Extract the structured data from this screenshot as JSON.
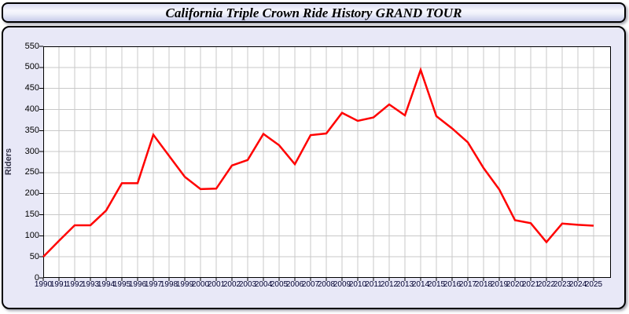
{
  "header": {
    "title": "California Triple Crown Ride History GRAND TOUR"
  },
  "chart_data": {
    "type": "line",
    "title": "California Triple Crown Ride History GRAND TOUR",
    "xlabel": "",
    "ylabel": "Riders",
    "ylim": [
      0,
      550
    ],
    "ytick_step": 50,
    "grid": true,
    "legend": "none",
    "line_color": "#ff0000",
    "x": [
      1990,
      1991,
      1992,
      1993,
      1994,
      1995,
      1996,
      1997,
      1998,
      1999,
      2000,
      2001,
      2002,
      2003,
      2004,
      2005,
      2006,
      2007,
      2008,
      2009,
      2010,
      2011,
      2012,
      2013,
      2014,
      2015,
      2016,
      2017,
      2018,
      2019,
      2020,
      2021,
      2022,
      2023,
      2024,
      2025
    ],
    "series": [
      {
        "name": "Riders",
        "color": "#ff0000",
        "values": [
          50,
          88,
          125,
          125,
          160,
          225,
          225,
          340,
          290,
          240,
          211,
          212,
          267,
          280,
          342,
          315,
          270,
          339,
          343,
          392,
          373,
          381,
          412,
          386,
          494,
          384,
          355,
          322,
          261,
          210,
          137,
          130,
          85,
          129,
          126,
          124
        ]
      }
    ]
  },
  "colors": {
    "panel_bg": "#e8e8f7",
    "plot_bg": "#ffffff",
    "gridline": "#c9c9c9",
    "axis": "#000000",
    "line": "#ff0000"
  }
}
